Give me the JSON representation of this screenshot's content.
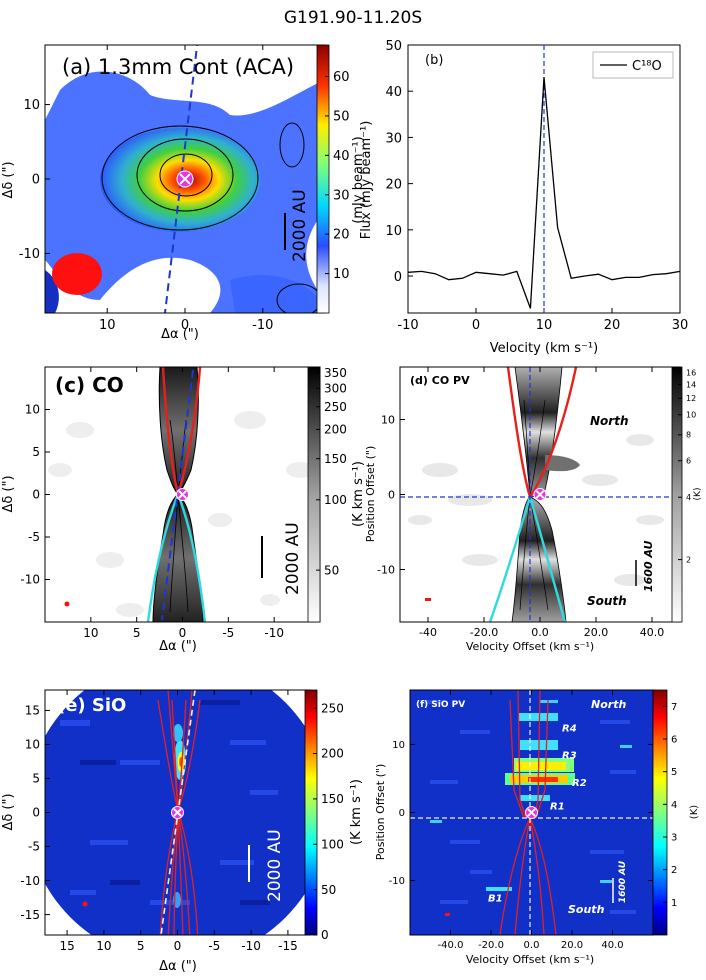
{
  "figure_title": "G191.90-11.20S",
  "colors": {
    "jet_stops": [
      "#00007f",
      "#0000ff",
      "#0080ff",
      "#00ffff",
      "#80ff80",
      "#ffff00",
      "#ff8000",
      "#ff0000",
      "#7f0000"
    ],
    "outflow_red": "#e8201c",
    "outflow_cyan": "#30d8e0",
    "star_marker": "#e834e0",
    "axis_dash": "#1f35d6",
    "beam": "#ff1010"
  },
  "chart_data": [
    {
      "id": "a",
      "type": "heatmap",
      "label": "(a) 1.3mm Cont (ACA)",
      "xlabel": "Δα (\")",
      "ylabel": "Δδ (\")",
      "xlim": [
        18,
        -18
      ],
      "ylim": [
        -18,
        18
      ],
      "xticks": [
        10,
        0,
        -10
      ],
      "yticks": [
        10,
        0,
        -10
      ],
      "colorbar": {
        "label": "(mJy beam⁻¹)",
        "range": [
          0,
          68
        ],
        "ticks": [
          10,
          20,
          30,
          40,
          50,
          60
        ]
      },
      "scale_bar": "2000 AU",
      "peak_value": 65,
      "peak_position": [
        0,
        0
      ]
    },
    {
      "id": "b",
      "type": "line",
      "label": "(b)",
      "xlabel": "Velocity  (km s⁻¹)",
      "ylabel": "Flux (mJy beam⁻¹)",
      "xlim": [
        -10,
        30
      ],
      "ylim": [
        -8,
        50
      ],
      "xticks": [
        -10,
        0,
        10,
        20,
        30
      ],
      "yticks": [
        0,
        10,
        20,
        30,
        40,
        50
      ],
      "series": [
        {
          "name": "C¹⁸O",
          "x": [
            -10,
            -8,
            -6,
            -4,
            -2,
            0,
            2,
            4,
            6,
            8,
            10,
            12,
            14,
            16,
            18,
            20,
            22,
            24,
            26,
            28,
            30
          ],
          "y": [
            0.8,
            1.0,
            0.5,
            -0.8,
            -0.5,
            0.8,
            0.5,
            0.2,
            1.0,
            -7.0,
            43.0,
            10.5,
            -0.5,
            0.0,
            0.4,
            -0.8,
            -0.3,
            -0.3,
            0.3,
            0.5,
            1.0
          ]
        }
      ],
      "vline": 10,
      "legend": "top-right"
    },
    {
      "id": "c",
      "type": "heatmap",
      "label": "(c) CO",
      "xlabel": "Δα (\")",
      "ylabel": "Δδ (\")",
      "xlim": [
        15,
        -15
      ],
      "ylim": [
        -15,
        15
      ],
      "xticks": [
        10,
        5,
        0,
        -5,
        -10
      ],
      "yticks": [
        10,
        5,
        0,
        -5,
        -10
      ],
      "colorbar": {
        "label": "(K km s⁻¹)",
        "scale": "log",
        "ticks": [
          50,
          100,
          150,
          200,
          250,
          300,
          350
        ],
        "range": [
          30,
          370
        ]
      },
      "scale_bar": "2000 AU"
    },
    {
      "id": "d",
      "type": "heatmap",
      "label": "(d) CO PV",
      "xlabel": "Velocity Offset (km s⁻¹)",
      "ylabel": "Position Offset (\")",
      "xlim": [
        -50,
        50
      ],
      "ylim": [
        -17,
        17
      ],
      "xticks": [
        -40,
        -20,
        0,
        20,
        40
      ],
      "xticklabels": [
        "-40",
        "-20.0",
        "0.0",
        "20.0",
        "40.0"
      ],
      "yticks": [
        10,
        0,
        -10
      ],
      "colorbar": {
        "label": "(K)",
        "scale": "log",
        "ticks": [
          2,
          4,
          6,
          8,
          10,
          12,
          14,
          16
        ],
        "range": [
          1,
          17
        ]
      },
      "annotations": [
        "North",
        "South"
      ],
      "scale_bar": "1600 AU"
    },
    {
      "id": "e",
      "type": "heatmap",
      "label": "(e) SiO",
      "xlabel": "Δα (\")",
      "ylabel": "Δδ (\")",
      "xlim": [
        18,
        -18
      ],
      "ylim": [
        -18,
        18
      ],
      "xticks": [
        15,
        10,
        5,
        0,
        -5,
        -10,
        -15
      ],
      "yticks": [
        15,
        10,
        5,
        0,
        -5,
        -10,
        -15
      ],
      "colorbar": {
        "label": "(K km s⁻¹)",
        "ticks": [
          0,
          50,
          100,
          150,
          200,
          250
        ],
        "range": [
          0,
          270
        ]
      },
      "scale_bar": "2000 AU"
    },
    {
      "id": "f",
      "type": "heatmap",
      "label": "(f) SiO PV",
      "xlabel": "Velocity Offset (km s⁻¹)",
      "ylabel": "Position Offset (\")",
      "xlim": [
        -60,
        60
      ],
      "ylim": [
        -18,
        18
      ],
      "xticks": [
        -40,
        -20,
        0,
        20,
        40
      ],
      "xticklabels": [
        "-40.0",
        "-20.0",
        "0.0",
        "20.0",
        "40.0"
      ],
      "yticks": [
        10,
        0,
        -10
      ],
      "colorbar": {
        "label": "(K)",
        "ticks": [
          1,
          2,
          3,
          4,
          5,
          6,
          7
        ],
        "range": [
          0,
          7.5
        ]
      },
      "annotations": [
        "North",
        "South"
      ],
      "knots": [
        {
          "name": "R4",
          "pos": 12.5
        },
        {
          "name": "R3",
          "pos": 8.5
        },
        {
          "name": "R2",
          "pos": 4.5
        },
        {
          "name": "R1",
          "pos": 1.0
        },
        {
          "name": "B1",
          "pos": -12.5
        }
      ],
      "scale_bar": "1600 AU"
    }
  ]
}
